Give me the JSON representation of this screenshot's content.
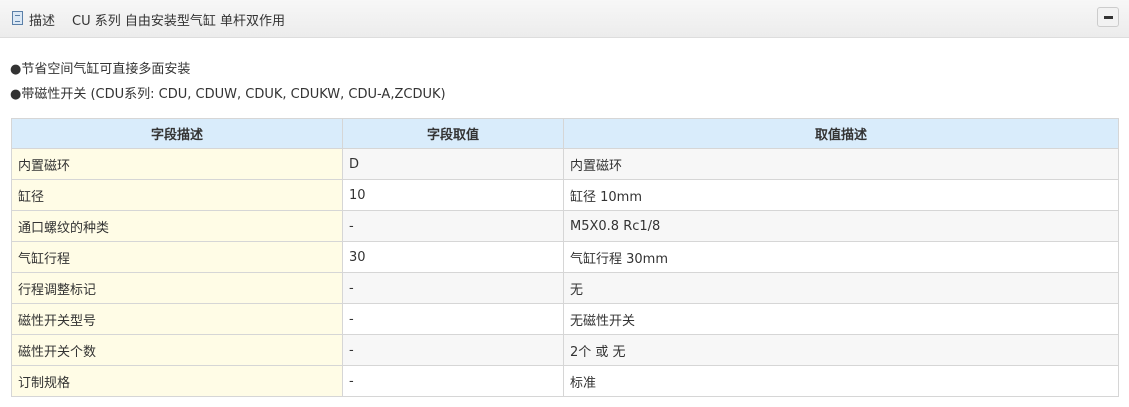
{
  "header": {
    "label": "描述",
    "title": "CU 系列 自由安装型气缸 单杆双作用",
    "collapse_icon": "minus-icon"
  },
  "features": [
    "●节省空间气缸可直接多面安装",
    "●带磁性开关 (CDU系列: CDU, CDUW, CDUK, CDUKW, CDU-A,ZCDUK)"
  ],
  "table": {
    "headers": [
      "字段描述",
      "字段取值",
      "取值描述"
    ],
    "rows": [
      [
        "内置磁环",
        "D",
        "内置磁环"
      ],
      [
        "缸径",
        "10",
        "缸径 10mm"
      ],
      [
        "通口螺纹的种类",
        "-",
        "M5X0.8 Rc1/8"
      ],
      [
        "气缸行程",
        "30",
        "气缸行程 30mm"
      ],
      [
        "行程调整标记",
        "-",
        "无"
      ],
      [
        "磁性开关型号",
        "-",
        "无磁性开关"
      ],
      [
        "磁性开关个数",
        "-",
        "2个 或 无"
      ],
      [
        "订制规格",
        "-",
        "标准"
      ]
    ]
  }
}
